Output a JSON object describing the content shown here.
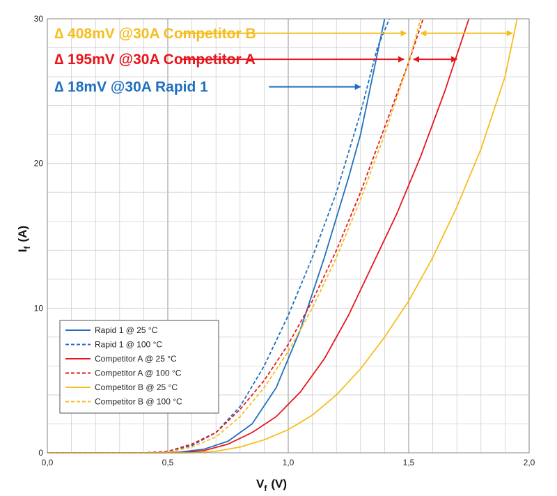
{
  "chart_data": {
    "type": "line",
    "xlabel_main": "V",
    "xlabel_sub": "f",
    "xlabel_unit": "(V)",
    "ylabel_main": "I",
    "ylabel_sub": "f",
    "ylabel_unit": "(A)",
    "xlim": [
      0,
      2
    ],
    "ylim": [
      0,
      30
    ],
    "x_ticks": [
      0,
      0.5,
      1,
      1.5,
      2
    ],
    "x_tick_labels": [
      "0,0",
      "0,5",
      "1,0",
      "1,5",
      "2,0"
    ],
    "y_ticks": [
      0,
      10,
      20,
      30
    ],
    "y_tick_labels": [
      "0",
      "10",
      "20",
      "30"
    ],
    "grid": true,
    "legend_position": "bottom-left",
    "series": [
      {
        "name": "Rapid 1 @ 25 °C",
        "color": "#1f6fbf",
        "dash": "solid",
        "points": [
          [
            0,
            0
          ],
          [
            0.45,
            0
          ],
          [
            0.55,
            0.05
          ],
          [
            0.65,
            0.25
          ],
          [
            0.75,
            0.8
          ],
          [
            0.85,
            2.0
          ],
          [
            0.95,
            4.5
          ],
          [
            1.05,
            8.5
          ],
          [
            1.15,
            13.5
          ],
          [
            1.25,
            19.0
          ],
          [
            1.3,
            22.0
          ],
          [
            1.35,
            26.0
          ],
          [
            1.4,
            30.0
          ]
        ]
      },
      {
        "name": "Rapid 1 @ 100 °C",
        "color": "#1f6fbf",
        "dash": "dashed",
        "points": [
          [
            0,
            0
          ],
          [
            0.4,
            0
          ],
          [
            0.5,
            0.1
          ],
          [
            0.6,
            0.5
          ],
          [
            0.7,
            1.4
          ],
          [
            0.8,
            3.2
          ],
          [
            0.9,
            6.0
          ],
          [
            1.0,
            9.5
          ],
          [
            1.1,
            13.5
          ],
          [
            1.2,
            18.0
          ],
          [
            1.3,
            23.5
          ],
          [
            1.37,
            28.0
          ],
          [
            1.42,
            30.0
          ]
        ]
      },
      {
        "name": "Competitor A @ 25 °C",
        "color": "#e8151b",
        "dash": "solid",
        "points": [
          [
            0,
            0
          ],
          [
            0.55,
            0
          ],
          [
            0.65,
            0.15
          ],
          [
            0.75,
            0.6
          ],
          [
            0.85,
            1.4
          ],
          [
            0.95,
            2.5
          ],
          [
            1.05,
            4.2
          ],
          [
            1.15,
            6.5
          ],
          [
            1.25,
            9.5
          ],
          [
            1.35,
            13.0
          ],
          [
            1.45,
            16.5
          ],
          [
            1.55,
            20.5
          ],
          [
            1.65,
            25.0
          ],
          [
            1.7,
            27.5
          ],
          [
            1.75,
            30.0
          ]
        ]
      },
      {
        "name": "Competitor A @ 100 °C",
        "color": "#e8151b",
        "dash": "dashed",
        "points": [
          [
            0,
            0
          ],
          [
            0.4,
            0
          ],
          [
            0.5,
            0.1
          ],
          [
            0.6,
            0.6
          ],
          [
            0.7,
            1.4
          ],
          [
            0.8,
            3.0
          ],
          [
            0.9,
            5.0
          ],
          [
            1.0,
            7.5
          ],
          [
            1.1,
            10.5
          ],
          [
            1.2,
            14.0
          ],
          [
            1.3,
            18.0
          ],
          [
            1.4,
            22.5
          ],
          [
            1.5,
            27.0
          ],
          [
            1.56,
            30.0
          ]
        ]
      },
      {
        "name": "Competitor B @ 25 °C",
        "color": "#f5be1e",
        "dash": "solid",
        "points": [
          [
            0,
            0
          ],
          [
            0.6,
            0
          ],
          [
            0.7,
            0.1
          ],
          [
            0.8,
            0.4
          ],
          [
            0.9,
            0.9
          ],
          [
            1.0,
            1.6
          ],
          [
            1.1,
            2.6
          ],
          [
            1.2,
            4.0
          ],
          [
            1.3,
            5.8
          ],
          [
            1.4,
            8.0
          ],
          [
            1.5,
            10.5
          ],
          [
            1.6,
            13.5
          ],
          [
            1.7,
            17.0
          ],
          [
            1.8,
            21.0
          ],
          [
            1.9,
            26.0
          ],
          [
            1.95,
            30.0
          ]
        ]
      },
      {
        "name": "Competitor B @ 100 °C",
        "color": "#f5be1e",
        "dash": "dashed",
        "points": [
          [
            0,
            0
          ],
          [
            0.4,
            0
          ],
          [
            0.5,
            0.05
          ],
          [
            0.6,
            0.4
          ],
          [
            0.7,
            1.1
          ],
          [
            0.8,
            2.5
          ],
          [
            0.9,
            4.5
          ],
          [
            1.0,
            7.0
          ],
          [
            1.1,
            10.0
          ],
          [
            1.2,
            13.5
          ],
          [
            1.3,
            17.5
          ],
          [
            1.4,
            22.0
          ],
          [
            1.5,
            27.0
          ],
          [
            1.55,
            30.0
          ]
        ]
      }
    ],
    "annotations": [
      {
        "text": "∆ 408mV @30A Competitor B",
        "color": "#f5be1e",
        "y": 29.0,
        "arrow_x": [
          0.56,
          1.49
        ],
        "dim_x": [
          1.55,
          1.93
        ]
      },
      {
        "text": "∆ 195mV @30A Competitor A",
        "color": "#e8151b",
        "y": 27.2,
        "arrow_x": [
          0.56,
          1.48
        ],
        "dim_x": [
          1.52,
          1.7
        ]
      },
      {
        "text": "∆  18mV @30A Rapid 1",
        "color": "#1f6fbf",
        "y": 25.3,
        "arrow_x": [
          0.92,
          1.3
        ],
        "dim_x": null
      }
    ]
  }
}
